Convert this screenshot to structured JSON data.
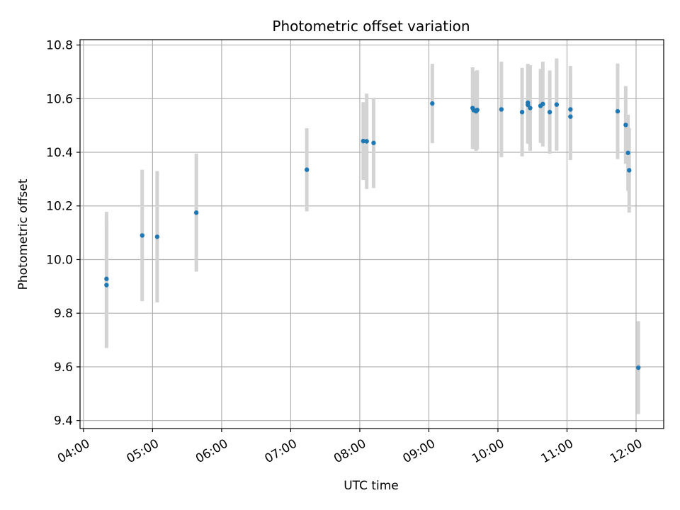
{
  "chart_data": {
    "type": "scatter",
    "title": "Photometric offset variation",
    "xlabel": "UTC time",
    "ylabel": "Photometric offset",
    "grid": true,
    "xlim": [
      "04:00",
      "12:24"
    ],
    "ylim": [
      9.37,
      10.82
    ],
    "x_ticks": [
      "04:00",
      "05:00",
      "06:00",
      "07:00",
      "08:00",
      "09:00",
      "10:00",
      "11:00",
      "12:00"
    ],
    "y_ticks": [
      "9.4",
      "9.6",
      "9.8",
      "10.0",
      "10.2",
      "10.4",
      "10.6",
      "10.8"
    ],
    "colors": {
      "point": "#1f77b4",
      "errorbar": "#d3d3d3",
      "grid": "#b0b0b0"
    },
    "series": [
      {
        "points": [
          {
            "x": "04:20",
            "y": 9.905,
            "err": 0.235
          },
          {
            "x": "04:20",
            "y": 9.928,
            "err": 0.25
          },
          {
            "x": "04:51",
            "y": 10.09,
            "err": 0.245
          },
          {
            "x": "05:04",
            "y": 10.085,
            "err": 0.245
          },
          {
            "x": "05:38",
            "y": 10.175,
            "err": 0.22
          },
          {
            "x": "07:14",
            "y": 10.335,
            "err": 0.155
          },
          {
            "x": "08:03",
            "y": 10.442,
            "err": 0.145
          },
          {
            "x": "08:06",
            "y": 10.441,
            "err": 0.178
          },
          {
            "x": "08:12",
            "y": 10.435,
            "err": 0.168
          },
          {
            "x": "09:03",
            "y": 10.582,
            "err": 0.148
          },
          {
            "x": "09:38",
            "y": 10.565,
            "err": 0.152
          },
          {
            "x": "09:39",
            "y": 10.557,
            "err": 0.145
          },
          {
            "x": "09:41",
            "y": 10.553,
            "err": 0.148
          },
          {
            "x": "09:42",
            "y": 10.558,
            "err": 0.148
          },
          {
            "x": "10:03",
            "y": 10.56,
            "err": 0.178
          },
          {
            "x": "10:21",
            "y": 10.55,
            "err": 0.165
          },
          {
            "x": "10:26",
            "y": 10.585,
            "err": 0.145
          },
          {
            "x": "10:26",
            "y": 10.577,
            "err": 0.145
          },
          {
            "x": "10:28",
            "y": 10.565,
            "err": 0.16
          },
          {
            "x": "10:37",
            "y": 10.573,
            "err": 0.138
          },
          {
            "x": "10:39",
            "y": 10.58,
            "err": 0.158
          },
          {
            "x": "10:45",
            "y": 10.55,
            "err": 0.155
          },
          {
            "x": "10:51",
            "y": 10.578,
            "err": 0.172
          },
          {
            "x": "11:03",
            "y": 10.56,
            "err": 0.162
          },
          {
            "x": "11:03",
            "y": 10.533,
            "err": 0.162
          },
          {
            "x": "11:44",
            "y": 10.553,
            "err": 0.178
          },
          {
            "x": "11:51",
            "y": 10.502,
            "err": 0.145
          },
          {
            "x": "11:53",
            "y": 10.398,
            "err": 0.142
          },
          {
            "x": "11:54",
            "y": 10.333,
            "err": 0.158
          },
          {
            "x": "12:02",
            "y": 9.597,
            "err": 0.173
          }
        ]
      }
    ]
  }
}
